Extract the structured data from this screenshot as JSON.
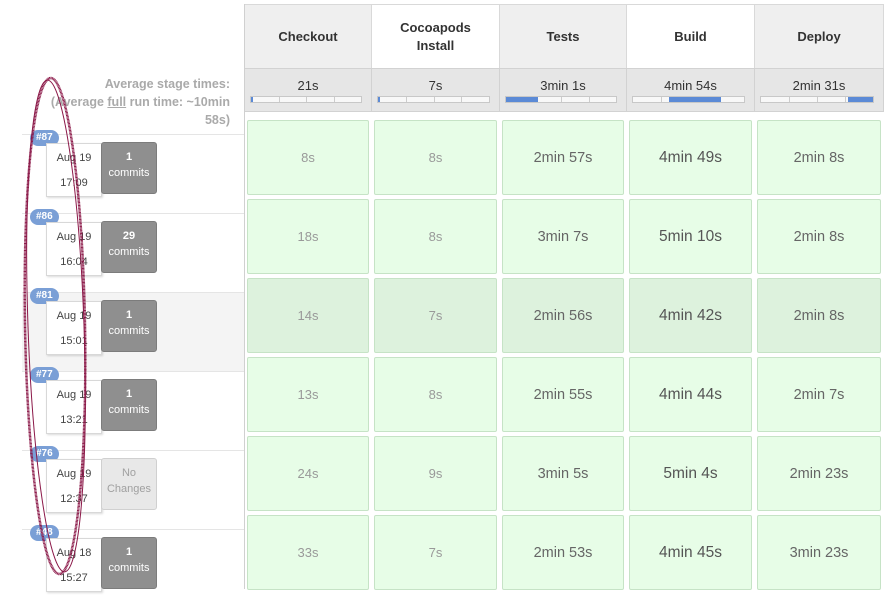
{
  "left": {
    "avg_line1": "Average stage times:",
    "avg_line2_pre": "(Average ",
    "avg_line2_link": "full",
    "avg_line2_post": " run time: ~10min",
    "avg_line3": "58s)"
  },
  "stages": [
    {
      "name": "Checkout",
      "avg": "21s",
      "fill_start": 0.0,
      "fill_width": 0.02
    },
    {
      "name": "Cocoapods Install",
      "avg": "7s",
      "fill_start": 0.0,
      "fill_width": 0.01
    },
    {
      "name": "Tests",
      "avg": "3min 1s",
      "fill_start": 0.0,
      "fill_width": 0.29
    },
    {
      "name": "Build",
      "avg": "4min 54s",
      "fill_start": 0.32,
      "fill_width": 0.47
    },
    {
      "name": "Deploy",
      "avg": "2min 31s",
      "fill_start": 0.78,
      "fill_width": 0.22
    }
  ],
  "builds": [
    {
      "badge": "#87",
      "date": "Aug 19",
      "time": "17:09",
      "commits_n": "1",
      "commits_l": "commits",
      "empty": false,
      "cells": [
        "8s",
        "8s",
        "2min 57s",
        "4min 49s",
        "2min 8s"
      ]
    },
    {
      "badge": "#86",
      "date": "Aug 19",
      "time": "16:04",
      "commits_n": "29",
      "commits_l": "commits",
      "empty": false,
      "cells": [
        "18s",
        "8s",
        "3min 7s",
        "5min 10s",
        "2min 8s"
      ]
    },
    {
      "badge": "#81",
      "date": "Aug 19",
      "time": "15:01",
      "commits_n": "1",
      "commits_l": "commits",
      "empty": false,
      "cells": [
        "14s",
        "7s",
        "2min 56s",
        "4min 42s",
        "2min 8s"
      ]
    },
    {
      "badge": "#77",
      "date": "Aug 19",
      "time": "13:21",
      "commits_n": "1",
      "commits_l": "commits",
      "empty": false,
      "cells": [
        "13s",
        "8s",
        "2min 55s",
        "4min 44s",
        "2min 7s"
      ]
    },
    {
      "badge": "#76",
      "date": "Aug 19",
      "time": "12:37",
      "commits_n": "No",
      "commits_l": "Changes",
      "empty": true,
      "cells": [
        "24s",
        "9s",
        "3min 5s",
        "5min 4s",
        "2min 23s"
      ]
    },
    {
      "badge": "#48",
      "date": "Aug 18",
      "time": "15:27",
      "commits_n": "1",
      "commits_l": "commits",
      "empty": false,
      "cells": [
        "33s",
        "7s",
        "2min 53s",
        "4min 45s",
        "3min 23s"
      ]
    }
  ],
  "colors": {
    "cell_bg": "#e7fde7",
    "badge": "#7a9fd6",
    "progress_fill": "#5b8ad6",
    "annotation_stroke": "#8b1848"
  }
}
